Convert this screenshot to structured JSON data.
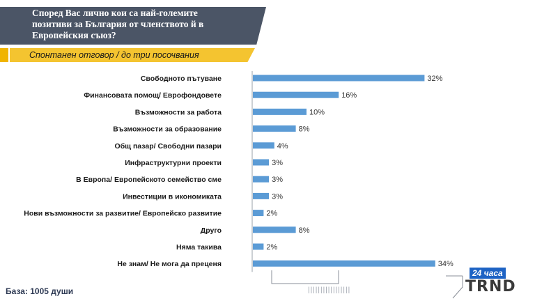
{
  "header": {
    "title": "Според Вас лично кои са най-големите\nпозитиви за България от членството й в\nЕвропейския съюз?",
    "subtitle": "Спонтанен отговор / до три посочвания"
  },
  "footer": {
    "base": "База: 1005 души",
    "ticks": "|||||||||||||||||"
  },
  "logo": {
    "badge": "24 часа",
    "word": "TRND"
  },
  "colors": {
    "bar": "#5b9bd5",
    "title_bg": "#4b5566",
    "accent": "#f4c430"
  },
  "chart_data": {
    "type": "bar",
    "orientation": "horizontal",
    "categories": [
      "Свободното пътуване",
      "Финансовата помощ/ Еврофондовете",
      "Възможности за работа",
      "Възможности за образование",
      "Общ пазар/ Свободни пазари",
      "Инфраструктурни проекти",
      "В Европа/ Европейското семейство сме",
      "Инвестиции в икономиката",
      "Нови възможности за развитие/ Европейско развитие",
      "Друго",
      "Няма такива",
      "Не знам/ Не мога да преценя"
    ],
    "values": [
      32,
      16,
      10,
      8,
      4,
      3,
      3,
      3,
      2,
      8,
      2,
      34
    ],
    "value_labels": [
      "32%",
      "16%",
      "10%",
      "8%",
      "4%",
      "3%",
      "3%",
      "3%",
      "2%",
      "8%",
      "2%",
      "34%"
    ],
    "xlim": [
      0,
      40
    ],
    "grid": false
  }
}
